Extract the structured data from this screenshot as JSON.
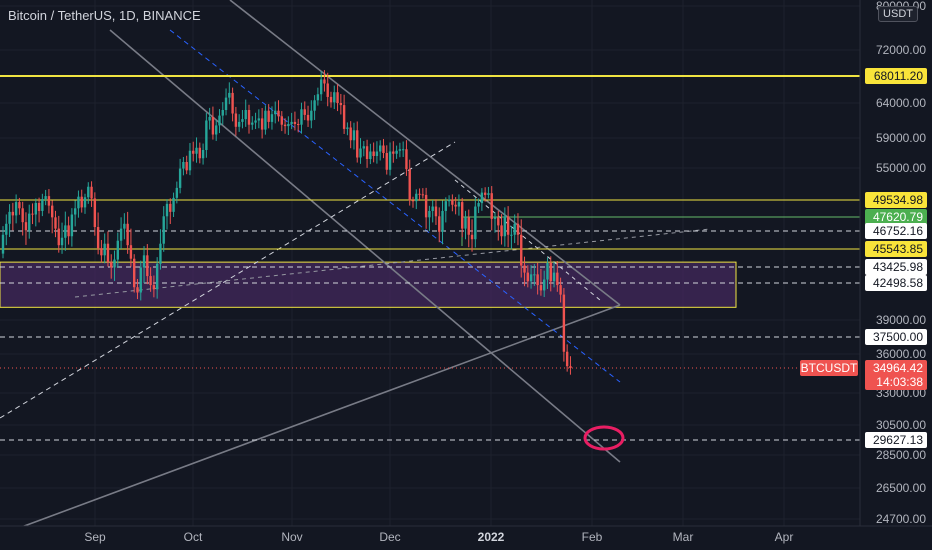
{
  "header": {
    "title": "Bitcoin / TetherUS, 1D, BINANCE",
    "currency": "USDT"
  },
  "colors": {
    "background": "#131722",
    "grid": "#1e222d",
    "up": "#26a69a",
    "down": "#ef5350",
    "yellow": "#f0e442",
    "green": "#66bb6a",
    "purple_zone": "#4a2a66",
    "circle": "#e91e63",
    "trend": "#787b86",
    "dashed_blue": "#2962ff",
    "text": "#b2b5be"
  },
  "chart_data": {
    "type": "candlestick",
    "symbol": "BTCUSDT",
    "interval": "1D",
    "exchange": "BINANCE",
    "x_axis_labels": [
      "Sep",
      "Oct",
      "Nov",
      "Dec",
      "2022",
      "Feb",
      "Mar",
      "Apr"
    ],
    "y_axis_labels": [
      80000.0,
      72000.0,
      64000.0,
      59000.0,
      55000.0,
      39000.0,
      36000.0,
      33000.0,
      30500.0,
      28500.0,
      26500.0,
      24700.0
    ],
    "price_tags": [
      {
        "value": "68011.20",
        "style": "yellow"
      },
      {
        "value": "49534.98",
        "style": "yellow"
      },
      {
        "value": "47620.79",
        "style": "green"
      },
      {
        "value": "46752.16",
        "style": "white"
      },
      {
        "value": "45543.85",
        "style": "yellow"
      },
      {
        "value": "43425.98",
        "style": "white"
      },
      {
        "value": "42498.58",
        "style": "white"
      },
      {
        "value": "37500.00",
        "style": "white"
      },
      {
        "value": "29627.13",
        "style": "white"
      }
    ],
    "last_price": {
      "symbol": "BTCUSDT",
      "price": "34964.42",
      "countdown": "14:03:38"
    },
    "horizontal_levels": {
      "solid_yellow": [
        68011.2,
        49534.98,
        45543.85
      ],
      "solid_green": [
        47620.79
      ],
      "dashed_white": [
        46752.16,
        43425.98,
        42498.58,
        37500.0,
        29627.13
      ]
    },
    "zone": {
      "top": 44000,
      "bottom": 40200,
      "color": "purple"
    },
    "closes": [
      46500,
      47200,
      48200,
      47800,
      49300,
      48600,
      47300,
      46800,
      48000,
      47900,
      49200,
      48300,
      49700,
      50200,
      48900,
      47600,
      46900,
      45800,
      46300,
      47100,
      46400,
      47900,
      48600,
      50100,
      48700,
      50000,
      51800,
      49800,
      47000,
      45600,
      44800,
      45900,
      44000,
      43400,
      44300,
      46100,
      46900,
      47200,
      45800,
      44400,
      42100,
      41600,
      43400,
      44800,
      42900,
      42300,
      41900,
      43800,
      45900,
      47700,
      49100,
      48200,
      49900,
      51600,
      54900,
      55800,
      54600,
      57300,
      56900,
      57700,
      56300,
      57400,
      61500,
      62000,
      59500,
      60800,
      62200,
      63000,
      64800,
      65500,
      62500,
      60600,
      61300,
      61700,
      63000,
      60900,
      61200,
      61500,
      61800,
      60200,
      62900,
      61300,
      62400,
      62900,
      62100,
      60900,
      60700,
      61000,
      61300,
      61000,
      60900,
      63100,
      62300,
      61500,
      62900,
      64400,
      65300,
      67500,
      66900,
      64900,
      64100,
      65600,
      64000,
      63700,
      60300,
      60500,
      58700,
      60100,
      56400,
      57600,
      57900,
      56200,
      57200,
      56600,
      57200,
      58000,
      57000,
      54700,
      57200,
      56900,
      57300,
      57500,
      57500,
      54800,
      49500,
      49400,
      50600,
      50500,
      50400,
      47600,
      48300,
      48800,
      47700,
      46700,
      48300,
      49400,
      49600,
      49000,
      48800,
      49300,
      46900,
      47600,
      46500,
      46200,
      48800,
      49200,
      50800,
      50400,
      50700,
      47500,
      47600,
      47100,
      46400,
      47700,
      46500,
      46500,
      47200,
      46500,
      43600,
      43100,
      42600,
      43000,
      43000,
      42300,
      41800,
      42700,
      43900,
      42600,
      43100,
      42300,
      41400,
      36200,
      35100,
      34964
    ]
  }
}
